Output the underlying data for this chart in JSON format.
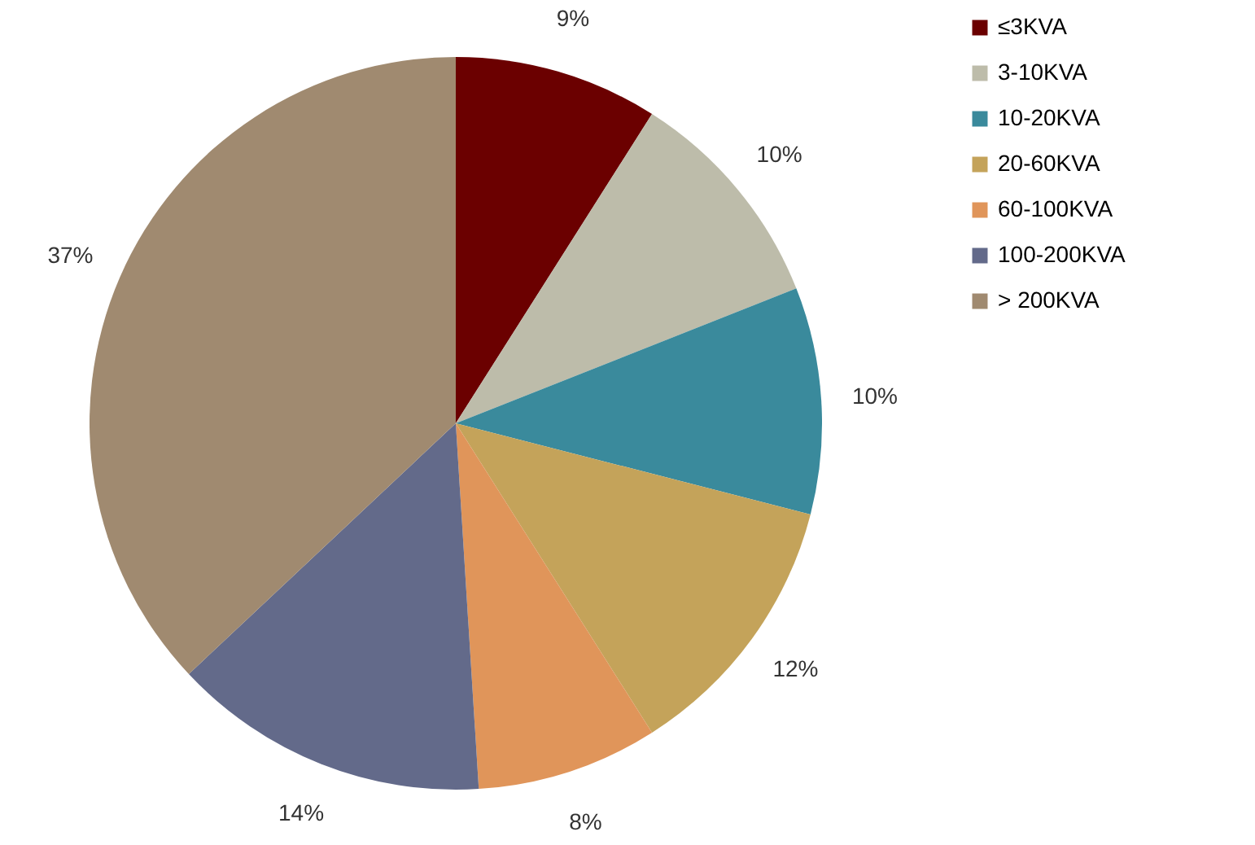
{
  "chart_data": {
    "type": "pie",
    "categories": [
      "≤3KVA",
      "3-10KVA",
      "10-20KVA",
      "20-60KVA",
      "60-100KVA",
      "100-200KVA",
      "> 200KVA"
    ],
    "values": [
      9,
      10,
      10,
      12,
      8,
      14,
      37
    ],
    "value_labels": [
      "9%",
      "10%",
      "10%",
      "12%",
      "8%",
      "14%",
      "37%"
    ],
    "colors": [
      "#6b0000",
      "#bdbcaa",
      "#3a8a9c",
      "#c4a35a",
      "#e0955a",
      "#636a8a",
      "#a08a70"
    ],
    "legend": "right"
  }
}
